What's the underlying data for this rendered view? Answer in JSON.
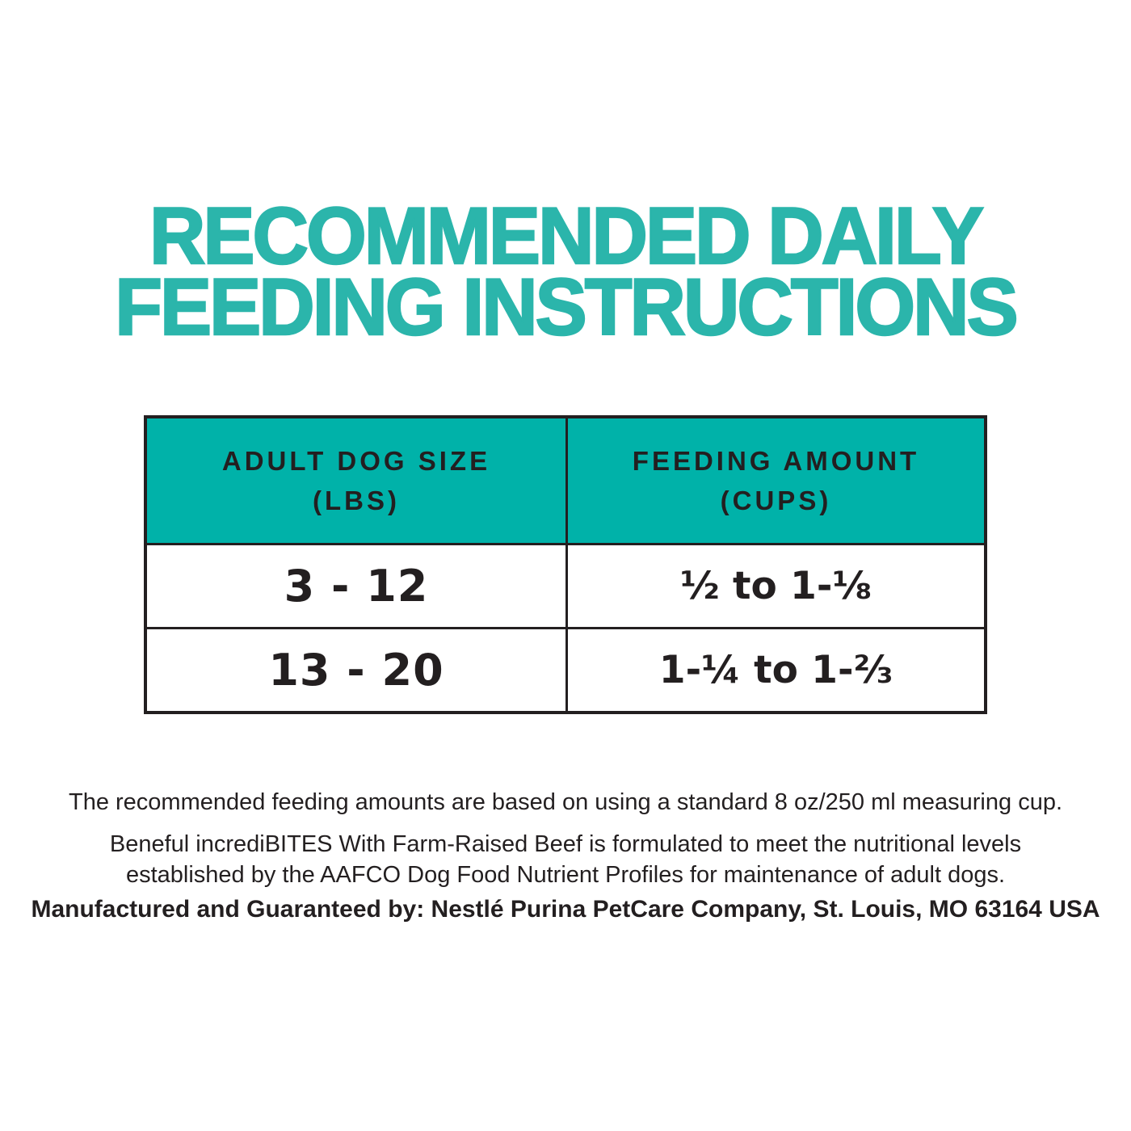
{
  "title": {
    "line1": "RECOMMENDED DAILY",
    "line2": "FEEDING INSTRUCTIONS"
  },
  "colors": {
    "title_teal": "#2BB5AB",
    "header_teal": "#00B2A9",
    "text_black": "#231F20"
  },
  "table": {
    "columns": [
      {
        "title": "ADULT DOG SIZE",
        "unit": "(LBS)"
      },
      {
        "title": "FEEDING AMOUNT",
        "unit": "(CUPS)"
      }
    ],
    "rows": [
      {
        "dog_size_lbs": "3 - 12",
        "feeding_amount_cups": "½ to 1-⅛"
      },
      {
        "dog_size_lbs": "13 - 20",
        "feeding_amount_cups": "1-¼ to 1-⅔"
      }
    ]
  },
  "notes": {
    "measuring_cup": "The recommended feeding amounts are based on using a standard 8 oz/250 ml measuring cup.",
    "aafco_line1": "Beneful incrediBITES With Farm-Raised Beef is formulated to meet the nutritional levels",
    "aafco_line2": "established by the AAFCO Dog Food Nutrient Profiles for maintenance of adult dogs.",
    "manufacturer": "Manufactured and Guaranteed by: Nestlé Purina PetCare Company, St. Louis, MO 63164 USA"
  }
}
